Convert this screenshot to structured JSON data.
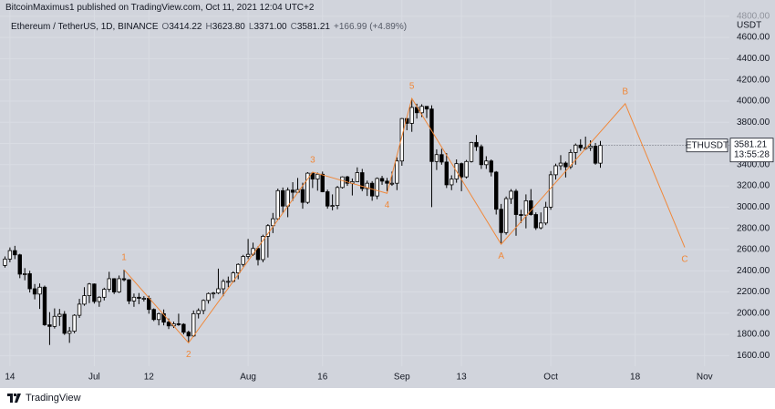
{
  "header": {
    "publisher": "BitcoinMaximus1 published on TradingView.com, Oct 11, 2021 12:04 UTC+2",
    "brand": "TradingView"
  },
  "chart_data": {
    "type": "candlestick",
    "symbol_line": "Ethereum / TetherUS, 1D, BINANCE",
    "ohlc_legend": [
      {
        "key": "O",
        "value": "3414.22"
      },
      {
        "key": "H",
        "value": "3623.80"
      },
      {
        "key": "L",
        "value": "3371.00"
      },
      {
        "key": "C",
        "value": "3581.21"
      }
    ],
    "change": "+166.99 (+4.89%)",
    "axis_unit": "USDT",
    "countdown": "13:55:28",
    "background": "#d1d4dc",
    "grid": true,
    "grid_color": "#d9dce3",
    "wave_color": "#f0883a",
    "x": [
      "2021-06-13",
      "2021-06-14",
      "2021-06-15",
      "2021-06-16",
      "2021-06-17",
      "2021-06-18",
      "2021-06-19",
      "2021-06-20",
      "2021-06-21",
      "2021-06-22",
      "2021-06-23",
      "2021-06-24",
      "2021-06-25",
      "2021-06-26",
      "2021-06-27",
      "2021-06-28",
      "2021-06-29",
      "2021-06-30",
      "2021-07-01",
      "2021-07-02",
      "2021-07-03",
      "2021-07-04",
      "2021-07-05",
      "2021-07-06",
      "2021-07-07",
      "2021-07-08",
      "2021-07-09",
      "2021-07-10",
      "2021-07-11",
      "2021-07-12",
      "2021-07-13",
      "2021-07-14",
      "2021-07-15",
      "2021-07-16",
      "2021-07-17",
      "2021-07-18",
      "2021-07-19",
      "2021-07-20",
      "2021-07-21",
      "2021-07-22",
      "2021-07-23",
      "2021-07-24",
      "2021-07-25",
      "2021-07-26",
      "2021-07-27",
      "2021-07-28",
      "2021-07-29",
      "2021-07-30",
      "2021-07-31",
      "2021-08-01",
      "2021-08-02",
      "2021-08-03",
      "2021-08-04",
      "2021-08-05",
      "2021-08-06",
      "2021-08-07",
      "2021-08-08",
      "2021-08-09",
      "2021-08-10",
      "2021-08-11",
      "2021-08-12",
      "2021-08-13",
      "2021-08-14",
      "2021-08-15",
      "2021-08-16",
      "2021-08-17",
      "2021-08-18",
      "2021-08-19",
      "2021-08-20",
      "2021-08-21",
      "2021-08-22",
      "2021-08-23",
      "2021-08-24",
      "2021-08-25",
      "2021-08-26",
      "2021-08-27",
      "2021-08-28",
      "2021-08-29",
      "2021-08-30",
      "2021-08-31",
      "2021-09-01",
      "2021-09-02",
      "2021-09-03",
      "2021-09-04",
      "2021-09-05",
      "2021-09-06",
      "2021-09-07",
      "2021-09-08",
      "2021-09-09",
      "2021-09-10",
      "2021-09-11",
      "2021-09-12",
      "2021-09-13",
      "2021-09-14",
      "2021-09-15",
      "2021-09-16",
      "2021-09-17",
      "2021-09-18",
      "2021-09-19",
      "2021-09-20",
      "2021-09-21",
      "2021-09-22",
      "2021-09-23",
      "2021-09-24",
      "2021-09-25",
      "2021-09-26",
      "2021-09-27",
      "2021-09-28",
      "2021-09-29",
      "2021-09-30",
      "2021-10-01",
      "2021-10-02",
      "2021-10-03",
      "2021-10-04",
      "2021-10-05",
      "2021-10-06",
      "2021-10-07",
      "2021-10-08",
      "2021-10-09",
      "2021-10-10",
      "2021-10-11"
    ],
    "series": [
      {
        "name": "ETHUSDT",
        "up_color": "#ffffff",
        "down_color": "#000000",
        "edge_color": "#000000",
        "open": [
          2450,
          2510,
          2590,
          2550,
          2368,
          2372,
          2230,
          2180,
          2245,
          1890,
          1875,
          1970,
          1990,
          1810,
          1830,
          1980,
          2085,
          2165,
          2275,
          2110,
          2150,
          2225,
          2325,
          2200,
          2325,
          2315,
          2115,
          2150,
          2140,
          2140,
          2035,
          1940,
          1995,
          1915,
          1880,
          1900,
          1895,
          1820,
          1785,
          1995,
          2025,
          2120,
          2185,
          2190,
          2230,
          2300,
          2300,
          2380,
          2460,
          2535,
          2555,
          2610,
          2505,
          2725,
          2825,
          2890,
          3155,
          3010,
          3160,
          3140,
          3165,
          3045,
          3320,
          3265,
          3310,
          3145,
          3010,
          3015,
          3185,
          3285,
          3225,
          3240,
          3325,
          3175,
          3225,
          3105,
          3270,
          3245,
          3225,
          3225,
          3435,
          3835,
          3790,
          3940,
          3890,
          3950,
          3925,
          3430,
          3495,
          3425,
          3210,
          3265,
          3410,
          3285,
          3430,
          3610,
          3570,
          3400,
          3435,
          3330,
          2980,
          2760,
          3080,
          3150,
          2930,
          2925,
          3060,
          2930,
          2805,
          2850,
          3000,
          3305,
          3390,
          3415,
          3380,
          3515,
          3585,
          3560,
          3560,
          3575,
          3414.22
        ],
        "high": [
          2535,
          2620,
          2635,
          2560,
          2425,
          2400,
          2275,
          2280,
          2260,
          2010,
          2045,
          2040,
          2020,
          1870,
          1990,
          2135,
          2245,
          2285,
          2280,
          2160,
          2240,
          2390,
          2330,
          2355,
          2410,
          2320,
          2185,
          2190,
          2160,
          2165,
          2045,
          2005,
          2035,
          1950,
          1920,
          1995,
          1905,
          1835,
          2025,
          2045,
          2130,
          2195,
          2200,
          2420,
          2320,
          2345,
          2395,
          2470,
          2550,
          2700,
          2665,
          2630,
          2740,
          2840,
          2945,
          3175,
          3185,
          3185,
          3235,
          3275,
          3230,
          3330,
          3330,
          3325,
          3335,
          3165,
          3120,
          3200,
          3290,
          3295,
          3270,
          3375,
          3360,
          3250,
          3245,
          3280,
          3295,
          3275,
          3335,
          3470,
          3840,
          3840,
          4025,
          3975,
          3970,
          3950,
          3960,
          3545,
          3550,
          3510,
          3300,
          3450,
          3420,
          3445,
          3615,
          3680,
          3590,
          3480,
          3450,
          3340,
          3030,
          3100,
          3170,
          3170,
          2975,
          3120,
          3170,
          2950,
          2950,
          3050,
          3340,
          3410,
          3490,
          3430,
          3545,
          3600,
          3640,
          3665,
          3630,
          3605,
          3623.8
        ],
        "low": [
          2430,
          2480,
          2510,
          2330,
          2310,
          2195,
          2130,
          2040,
          1880,
          1700,
          1855,
          1880,
          1795,
          1720,
          1810,
          1955,
          2070,
          2095,
          2090,
          2060,
          2120,
          2200,
          2180,
          2190,
          2300,
          2085,
          2060,
          2085,
          2110,
          1995,
          1925,
          1885,
          1885,
          1850,
          1860,
          1880,
          1800,
          1720,
          1775,
          1950,
          1990,
          2090,
          2140,
          2180,
          2160,
          2245,
          2290,
          2320,
          2440,
          2510,
          2540,
          2450,
          2480,
          2525,
          2755,
          2880,
          2945,
          2905,
          3060,
          3135,
          2985,
          3030,
          3180,
          3155,
          3140,
          2985,
          2970,
          2980,
          3175,
          3200,
          3110,
          3240,
          3150,
          3105,
          3060,
          3075,
          3210,
          3150,
          3200,
          3160,
          3390,
          3725,
          3710,
          3835,
          3850,
          3840,
          3000,
          3350,
          3400,
          3180,
          3160,
          3230,
          3150,
          3270,
          3420,
          3530,
          3360,
          3360,
          3290,
          2930,
          2650,
          2740,
          3030,
          2730,
          2850,
          2800,
          2920,
          2785,
          2790,
          2830,
          2975,
          3260,
          3350,
          3280,
          3360,
          3400,
          3530,
          3540,
          3530,
          3400,
          3371
        ],
        "close": [
          2510,
          2590,
          2550,
          2368,
          2372,
          2230,
          2180,
          2245,
          1890,
          1875,
          1970,
          1990,
          1810,
          1830,
          1980,
          2085,
          2165,
          2275,
          2110,
          2150,
          2225,
          2325,
          2200,
          2325,
          2315,
          2115,
          2150,
          2140,
          2140,
          2035,
          1940,
          1995,
          1915,
          1880,
          1900,
          1895,
          1820,
          1785,
          1995,
          2025,
          2120,
          2185,
          2190,
          2230,
          2300,
          2300,
          2380,
          2460,
          2535,
          2555,
          2610,
          2505,
          2725,
          2825,
          2890,
          3155,
          3010,
          3160,
          3140,
          3165,
          3045,
          3320,
          3265,
          3310,
          3145,
          3010,
          3015,
          3185,
          3285,
          3225,
          3240,
          3325,
          3175,
          3225,
          3105,
          3270,
          3245,
          3225,
          3225,
          3435,
          3835,
          3790,
          3940,
          3890,
          3950,
          3925,
          3430,
          3495,
          3425,
          3210,
          3265,
          3410,
          3285,
          3430,
          3610,
          3570,
          3400,
          3435,
          3330,
          2980,
          2760,
          3080,
          3150,
          2930,
          2925,
          3060,
          2930,
          2805,
          2850,
          3000,
          3305,
          3390,
          3415,
          3380,
          3515,
          3585,
          3560,
          3560,
          3575,
          3414.22,
          3581.21
        ]
      }
    ],
    "waves": [
      {
        "label": "1",
        "x": "2021-07-07",
        "y": 2410
      },
      {
        "label": "2",
        "x": "2021-07-20",
        "y": 1720
      },
      {
        "label": "3",
        "x": "2021-08-14",
        "y": 3330
      },
      {
        "label": "4",
        "x": "2021-08-29",
        "y": 3130
      },
      {
        "label": "5",
        "x": "2021-09-03",
        "y": 4025
      },
      {
        "label": "A",
        "x": "2021-09-21",
        "y": 2650
      },
      {
        "label": "B",
        "x": "2021-10-16",
        "y": 3975
      },
      {
        "label": "C",
        "x": "2021-10-28",
        "y": 2620
      }
    ],
    "xlim": [
      "2021-06-12",
      "2021-11-06"
    ],
    "xticks": [
      {
        "value": "2021-06-14",
        "label": "14"
      },
      {
        "value": "2021-07-01",
        "label": "Jul"
      },
      {
        "value": "2021-07-12",
        "label": "12"
      },
      {
        "value": "2021-08-01",
        "label": "Aug"
      },
      {
        "value": "2021-08-16",
        "label": "16"
      },
      {
        "value": "2021-09-01",
        "label": "Sep"
      },
      {
        "value": "2021-09-13",
        "label": "13"
      },
      {
        "value": "2021-10-01",
        "label": "Oct"
      },
      {
        "value": "2021-10-18",
        "label": "18"
      },
      {
        "value": "2021-11-01",
        "label": "Nov"
      }
    ],
    "ylim": [
      1500,
      4850
    ],
    "yticks": [
      {
        "value": 1600,
        "label": "1600.00"
      },
      {
        "value": 1800,
        "label": "1800.00"
      },
      {
        "value": 2000,
        "label": "2000.00"
      },
      {
        "value": 2200,
        "label": "2200.00"
      },
      {
        "value": 2400,
        "label": "2400.00"
      },
      {
        "value": 2600,
        "label": "2600.00"
      },
      {
        "value": 2800,
        "label": "2800.00"
      },
      {
        "value": 3000,
        "label": "3000.00"
      },
      {
        "value": 3200,
        "label": "3200.00"
      },
      {
        "value": 3400,
        "label": "3400.00"
      },
      {
        "value": 3600,
        "label": "3600.00"
      },
      {
        "value": 3800,
        "label": "3800.00"
      },
      {
        "value": 4000,
        "label": "4000.00"
      },
      {
        "value": 4200,
        "label": "4200.00"
      },
      {
        "value": 4400,
        "label": "4400.00"
      },
      {
        "value": 4600,
        "label": "4600.00"
      },
      {
        "value": 4800,
        "label": "4800.00"
      }
    ]
  }
}
